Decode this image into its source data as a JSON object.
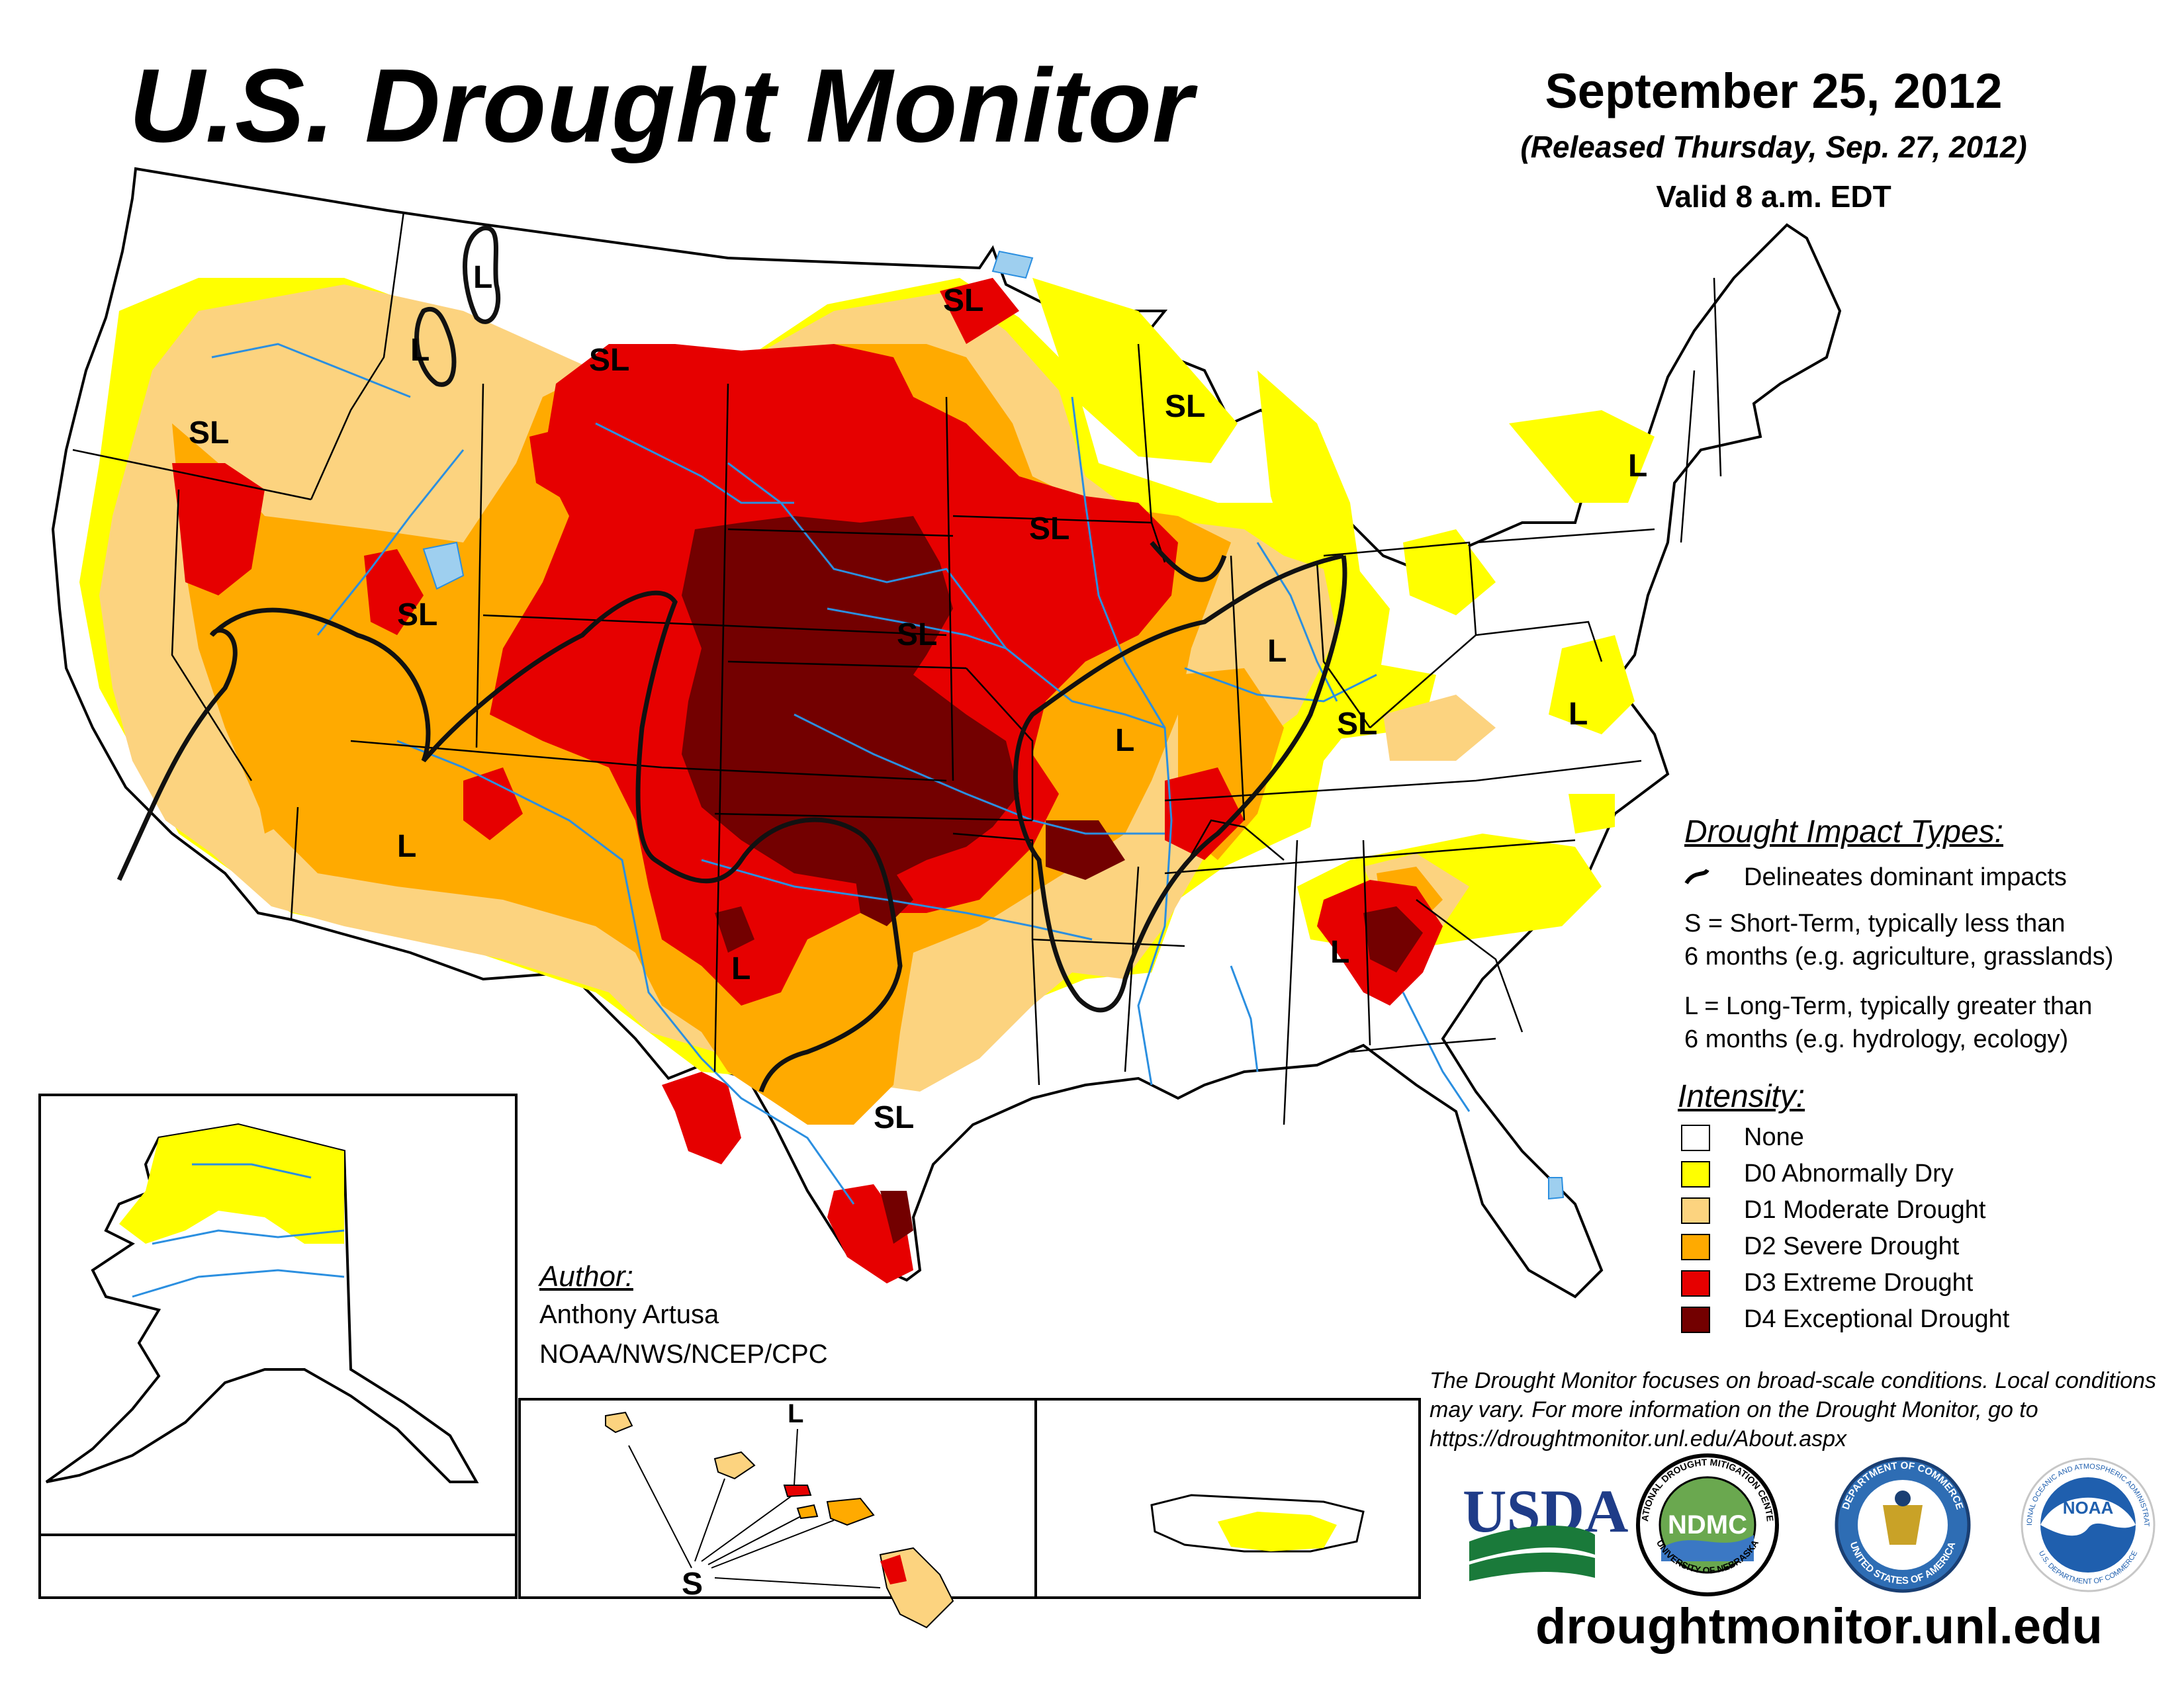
{
  "header": {
    "title": "U.S. Drought Monitor",
    "date": "September 25, 2012",
    "released": "(Released Thursday, Sep. 27, 2012)",
    "valid": "Valid 8 a.m. EDT"
  },
  "colors": {
    "none": "#ffffff",
    "d0": "#ffff00",
    "d1": "#fcd37f",
    "d2": "#ffaa00",
    "d3": "#e60000",
    "d4": "#730000",
    "water": "#2b8fe0",
    "lake": "#9ecfef"
  },
  "impact_legend": {
    "title": "Drought Impact Types:",
    "delineates": "Delineates dominant impacts",
    "s_line1": "S = Short-Term, typically less than",
    "s_line2": "6 months (e.g. agriculture, grasslands)",
    "l_line1": "L = Long-Term, typically greater than",
    "l_line2": "6 months (e.g. hydrology, ecology)"
  },
  "intensity_legend": {
    "title": "Intensity:",
    "items": [
      {
        "label": "None",
        "color": "#ffffff"
      },
      {
        "label": "D0 Abnormally Dry",
        "color": "#ffff00"
      },
      {
        "label": "D1 Moderate Drought",
        "color": "#fcd37f"
      },
      {
        "label": "D2 Severe Drought",
        "color": "#ffaa00"
      },
      {
        "label": "D3 Extreme Drought",
        "color": "#e60000"
      },
      {
        "label": "D4 Exceptional Drought",
        "color": "#730000"
      }
    ]
  },
  "map_labels": {
    "sl_pnw": "SL",
    "sl_mt": "SL",
    "sl_nd": "SL",
    "sl_wi": "SL",
    "sl_ut": "SL",
    "sl_ne": "SL",
    "sl_ia": "SL",
    "sl_ky": "SL",
    "sl_tx": "SL",
    "l_mt1": "L",
    "l_mt2": "L",
    "l_ny": "L",
    "l_il": "L",
    "l_mo": "L",
    "l_va": "L",
    "l_az": "L",
    "l_tx": "L",
    "l_ga": "L",
    "l_hi": "L",
    "s_hi": "S"
  },
  "author": {
    "heading": "Author:",
    "name": "Anthony Artusa",
    "org": "NOAA/NWS/NCEP/CPC"
  },
  "note": "The Drought Monitor focuses on broad-scale conditions. Local conditions may vary. For more information on the Drought Monitor, go to https://droughtmonitor.unl.edu/About.aspx",
  "logos": {
    "usda": "USDA",
    "ndmc": "NDMC",
    "ndmc_ring_top": "NATIONAL DROUGHT MITIGATION CENTER",
    "ndmc_ring_bottom": "UNIVERSITY OF NEBRASKA",
    "commerce_ring_top": "DEPARTMENT OF COMMERCE",
    "commerce_ring_bottom": "UNITED STATES OF AMERICA",
    "noaa": "NOAA",
    "noaa_ring_top": "NATIONAL OCEANIC AND ATMOSPHERIC ADMINISTRATION",
    "noaa_ring_bottom": "U.S. DEPARTMENT OF COMMERCE"
  },
  "website": "droughtmonitor.unl.edu"
}
